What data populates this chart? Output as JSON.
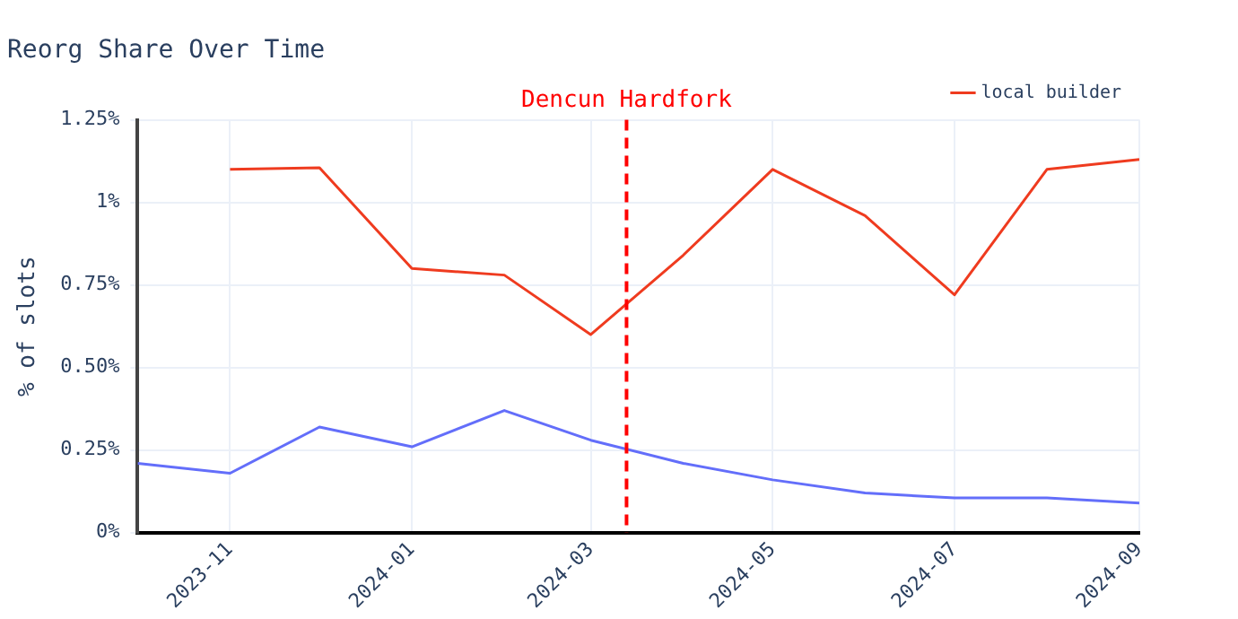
{
  "chart_data": {
    "type": "line",
    "title": "Reorg Share Over Time",
    "ylabel": "% of slots",
    "x": [
      "2023-10",
      "2023-11",
      "2023-12",
      "2024-01",
      "2024-02",
      "2024-03",
      "2024-04",
      "2024-05",
      "2024-06",
      "2024-07",
      "2024-08",
      "2024-09"
    ],
    "series": [
      {
        "color": "#636efa",
        "values": [
          0.21,
          0.18,
          0.32,
          0.26,
          0.37,
          0.28,
          0.21,
          0.16,
          0.12,
          0.105,
          0.105,
          0.09
        ]
      },
      {
        "name": "local builder",
        "color": "#ef3b1f",
        "values": [
          null,
          1.1,
          1.105,
          0.8,
          0.78,
          0.6,
          0.84,
          1.1,
          0.96,
          0.72,
          1.1,
          1.13
        ]
      }
    ],
    "xlim": [
      "2023-10",
      "2024-09"
    ],
    "xticks": [
      "2023-11",
      "2024-01",
      "2024-03",
      "2024-05",
      "2024-07",
      "2024-09"
    ],
    "ylim": [
      0,
      1.25
    ],
    "yticks": [
      {
        "value": 0,
        "label": "0%"
      },
      {
        "value": 0.25,
        "label": "0.25%"
      },
      {
        "value": 0.5,
        "label": "0.50%"
      },
      {
        "value": 0.75,
        "label": "0.75%"
      },
      {
        "value": 1,
        "label": "1%"
      },
      {
        "value": 1.25,
        "label": "1.25%"
      }
    ],
    "ref_lines": [
      {
        "axis": "x",
        "value": "2024-03-13",
        "label": "Dencun Hardfork",
        "color": "#ff0000",
        "line_style": "dashed"
      }
    ],
    "grid": true,
    "legend": "top right",
    "marker": "none",
    "line_style": "solid"
  }
}
